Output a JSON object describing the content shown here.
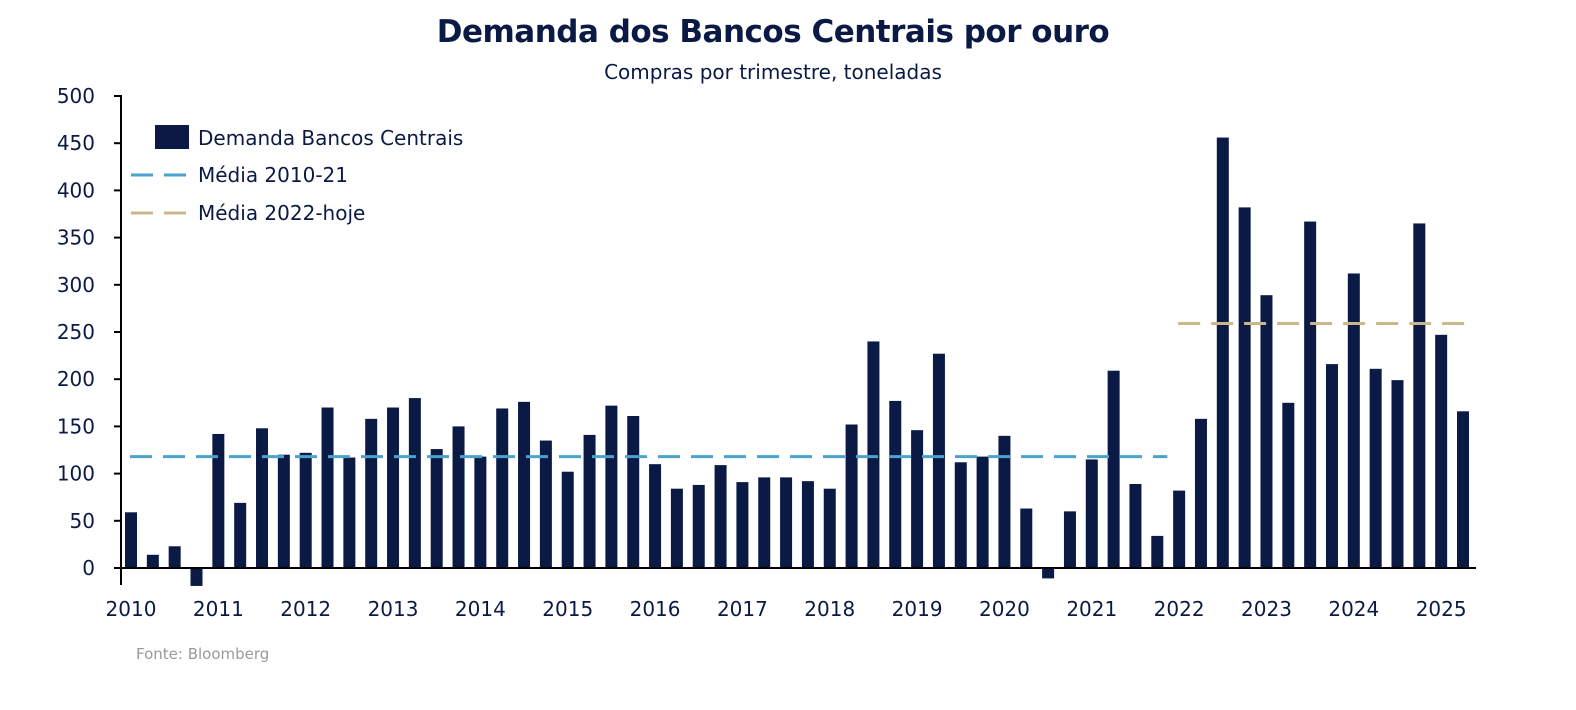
{
  "chart_data": {
    "type": "bar",
    "title": "Demanda dos Bancos Centrais por ouro",
    "subtitle": "Compras por trimestre, toneladas",
    "source": "Fonte: Bloomberg",
    "xlabel": "",
    "ylabel": "",
    "ylim": [
      -20,
      500
    ],
    "yticks": [
      0,
      50,
      100,
      150,
      200,
      250,
      300,
      350,
      400,
      450,
      500
    ],
    "xtick_labels": [
      "2010",
      "2011",
      "2012",
      "2013",
      "2014",
      "2015",
      "2016",
      "2017",
      "2018",
      "2019",
      "2020",
      "2021",
      "2022",
      "2023",
      "2024",
      "2025"
    ],
    "categories": [
      "2010Q1",
      "2010Q2",
      "2010Q3",
      "2010Q4",
      "2011Q1",
      "2011Q2",
      "2011Q3",
      "2011Q4",
      "2012Q1",
      "2012Q2",
      "2012Q3",
      "2012Q4",
      "2013Q1",
      "2013Q2",
      "2013Q3",
      "2013Q4",
      "2014Q1",
      "2014Q2",
      "2014Q3",
      "2014Q4",
      "2015Q1",
      "2015Q2",
      "2015Q3",
      "2015Q4",
      "2016Q1",
      "2016Q2",
      "2016Q3",
      "2016Q4",
      "2017Q1",
      "2017Q2",
      "2017Q3",
      "2017Q4",
      "2018Q1",
      "2018Q2",
      "2018Q3",
      "2018Q4",
      "2019Q1",
      "2019Q2",
      "2019Q3",
      "2019Q4",
      "2020Q1",
      "2020Q2",
      "2020Q3",
      "2020Q4",
      "2021Q1",
      "2021Q2",
      "2021Q3",
      "2021Q4",
      "2022Q1",
      "2022Q2",
      "2022Q3",
      "2022Q4",
      "2023Q1",
      "2023Q2",
      "2023Q3",
      "2023Q4",
      "2024Q1",
      "2024Q2",
      "2024Q3",
      "2024Q4",
      "2025Q1",
      "2025Q2"
    ],
    "series": [
      {
        "name": "Demanda Bancos Centrais",
        "color": "#0b1a45",
        "values": [
          59,
          14,
          23,
          -19,
          142,
          69,
          148,
          120,
          122,
          170,
          117,
          158,
          170,
          180,
          126,
          150,
          118,
          169,
          176,
          135,
          102,
          141,
          172,
          161,
          110,
          84,
          88,
          109,
          91,
          96,
          96,
          92,
          84,
          152,
          240,
          177,
          146,
          227,
          112,
          118,
          140,
          63,
          -11,
          60,
          115,
          209,
          89,
          34,
          82,
          158,
          456,
          382,
          289,
          175,
          367,
          216,
          312,
          211,
          199,
          365,
          247,
          166
        ]
      }
    ],
    "reference_lines": [
      {
        "name": "Média 2010-21",
        "value": 118,
        "from": "2010Q1",
        "to": "2021Q4",
        "color": "#4aa3cf",
        "style": "dashed"
      },
      {
        "name": "Média 2022-hoje",
        "value": 259,
        "from": "2022Q1",
        "to": "2025Q2",
        "color": "#c9b98a",
        "style": "dashed"
      }
    ],
    "legend_position": "top-left",
    "grid": false
  }
}
